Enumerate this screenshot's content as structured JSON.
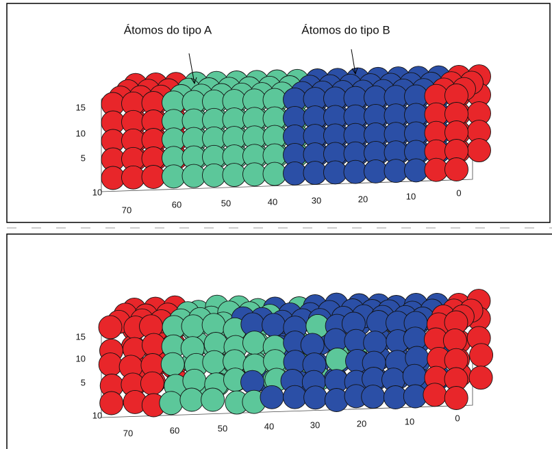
{
  "panels": [
    {
      "annotations": [
        "Átomos do tipo A",
        "Átomos do tipo B"
      ],
      "z_ticks": [
        15,
        10,
        5
      ],
      "y_tick": 10,
      "x_ticks": [
        70,
        60,
        50,
        40,
        30,
        20,
        10,
        0
      ]
    },
    {
      "z_ticks": [
        15,
        10,
        5
      ],
      "y_tick": 10,
      "x_ticks": [
        70,
        60,
        50,
        40,
        30,
        20,
        10,
        0
      ]
    }
  ]
}
